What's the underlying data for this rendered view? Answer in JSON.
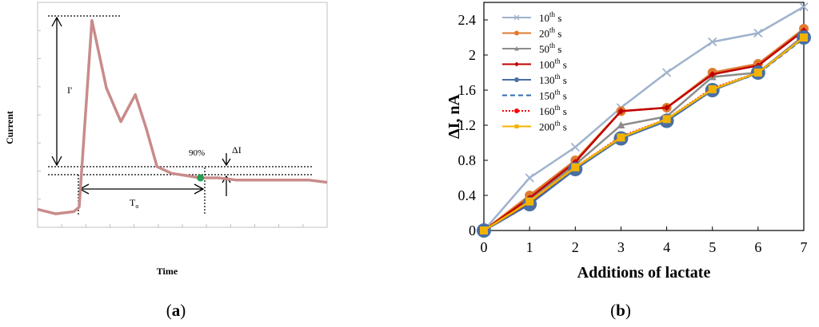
{
  "panels": {
    "a": {
      "caption_open": "(",
      "caption_letter": "a",
      "caption_close": ")",
      "ylabel": "Current",
      "xlabel": "Time",
      "label_I": "I'",
      "label_90": "90%",
      "label_dI": "ΔI",
      "label_To": "T",
      "label_To_sub": "o",
      "colors": {
        "trace": "#c98b8b",
        "marker": "#22a052"
      }
    },
    "b": {
      "caption_open": "(",
      "caption_letter": "b",
      "caption_close": ")"
    }
  },
  "chart_data": [
    {
      "type": "line",
      "panel": "a",
      "title": "",
      "xlabel": "Time",
      "ylabel": "Current",
      "grid": false,
      "ticks_labeled": false,
      "trace": {
        "x": [
          0,
          1,
          2,
          2.3,
          3,
          3.8,
          4.6,
          5.4,
          6,
          6.6,
          7.4,
          8.2,
          9,
          10,
          11,
          12,
          13,
          14,
          15,
          16
        ],
        "y": [
          0.08,
          0.06,
          0.07,
          0.09,
          0.92,
          0.62,
          0.47,
          0.59,
          0.44,
          0.27,
          0.24,
          0.23,
          0.22,
          0.22,
          0.21,
          0.21,
          0.21,
          0.21,
          0.21,
          0.2
        ]
      },
      "annotations": [
        "I'",
        "90%",
        "ΔI",
        "To"
      ]
    },
    {
      "type": "line",
      "panel": "b",
      "title": "",
      "xlabel": "Additions of lactate",
      "ylabel": "ΔI, nA",
      "xlim": [
        0,
        7
      ],
      "ylim": [
        0,
        2.6
      ],
      "xticks": [
        "0",
        "1",
        "2",
        "3",
        "4",
        "5",
        "6",
        "7"
      ],
      "yticks": [
        "0",
        "0.4",
        "0.8",
        "1.2",
        "1.6",
        "2",
        "2.4"
      ],
      "grid": false,
      "legend_position": "top-left",
      "x": [
        0,
        1,
        2,
        3,
        4,
        5,
        6,
        7
      ],
      "series": [
        {
          "name": "10",
          "name_sup": "th",
          "name_suffix": " s",
          "color": "#9eb2cc",
          "marker": "x",
          "values": [
            0,
            0.6,
            0.95,
            1.4,
            1.8,
            2.15,
            2.25,
            2.55
          ]
        },
        {
          "name": "20",
          "name_sup": "th",
          "name_suffix": " s",
          "color": "#e07b30",
          "marker": "circle",
          "values": [
            0,
            0.4,
            0.8,
            1.36,
            1.4,
            1.8,
            1.9,
            2.3
          ]
        },
        {
          "name": "50",
          "name_sup": "th",
          "name_suffix": " s",
          "color": "#8c8c8c",
          "marker": "triangle",
          "values": [
            0,
            0.35,
            0.75,
            1.2,
            1.3,
            1.75,
            1.8,
            2.22
          ]
        },
        {
          "name": "100",
          "name_sup": "th",
          "name_suffix": " s",
          "color": "#c00000",
          "marker": "diamond",
          "values": [
            0,
            0.37,
            0.78,
            1.36,
            1.4,
            1.78,
            1.88,
            2.28
          ]
        },
        {
          "name": "130",
          "name_sup": "th",
          "name_suffix": " s",
          "color": "#4a6fa5",
          "marker": "big-circle",
          "values": [
            0,
            0.3,
            0.7,
            1.05,
            1.25,
            1.6,
            1.8,
            2.2
          ]
        },
        {
          "name": "150",
          "name_sup": "th",
          "name_suffix": " s",
          "color": "#2e6db4",
          "marker": "none",
          "dash": "6,4",
          "values": [
            0,
            0.31,
            0.71,
            1.06,
            1.26,
            1.61,
            1.79,
            2.19
          ]
        },
        {
          "name": "160",
          "name_sup": "th",
          "name_suffix": " s",
          "color": "#ff0000",
          "marker": "small-circle",
          "dash": "2,2",
          "values": [
            0,
            0.32,
            0.72,
            1.07,
            1.27,
            1.62,
            1.8,
            2.2
          ]
        },
        {
          "name": "200",
          "name_sup": "th",
          "name_suffix": " s",
          "color": "#f2b300",
          "marker": "square",
          "values": [
            0,
            0.33,
            0.72,
            1.06,
            1.27,
            1.61,
            1.8,
            2.2
          ]
        }
      ]
    }
  ]
}
